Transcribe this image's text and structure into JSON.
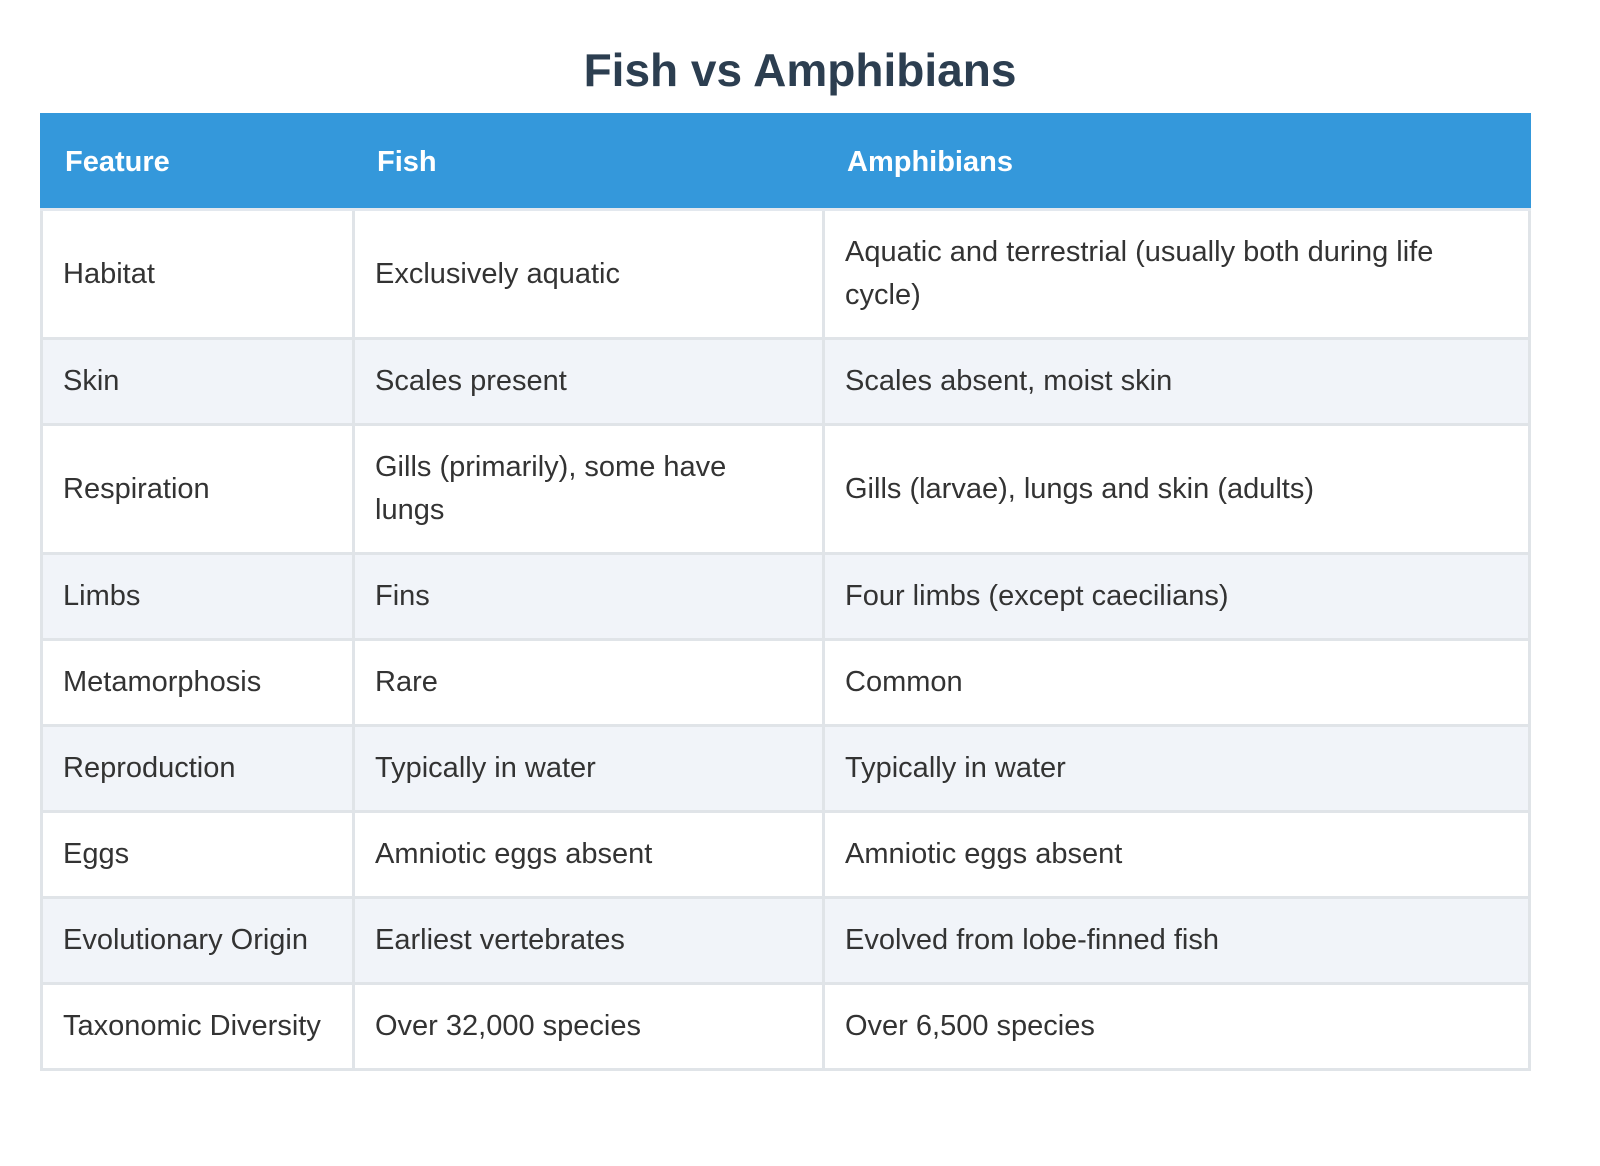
{
  "title": "Fish vs Amphibians",
  "table": {
    "header": [
      "Feature",
      "Fish",
      "Amphibians"
    ],
    "rows": [
      [
        "Habitat",
        "Exclusively aquatic",
        "Aquatic and terrestrial (usually both during life cycle)"
      ],
      [
        "Skin",
        "Scales present",
        "Scales absent, moist skin"
      ],
      [
        "Respiration",
        "Gills (primarily), some have lungs",
        "Gills (larvae), lungs and skin (adults)"
      ],
      [
        "Limbs",
        "Fins",
        "Four limbs (except caecilians)"
      ],
      [
        "Metamorphosis",
        "Rare",
        "Common"
      ],
      [
        "Reproduction",
        "Typically in water",
        "Typically in water"
      ],
      [
        "Eggs",
        "Amniotic eggs absent",
        "Amniotic eggs absent"
      ],
      [
        "Evolutionary Origin",
        "Earliest vertebrates",
        "Evolved from lobe-finned fish"
      ],
      [
        "Taxonomic Diversity",
        "Over 32,000 species",
        "Over 6,500 species"
      ]
    ]
  }
}
